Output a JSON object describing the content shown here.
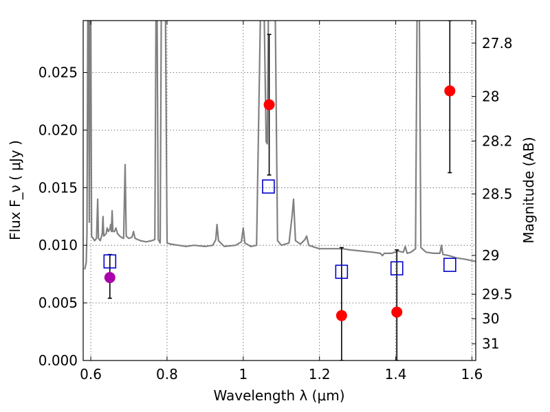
{
  "chart_data": {
    "type": "scatter",
    "xlabel": "Wavelength  λ (μm)",
    "ylabel": "Flux  F_ν  ( μJy )",
    "y2label": "Magnitude (AB)",
    "xlim": [
      0.58,
      1.61
    ],
    "ylim": [
      0.0,
      0.0295
    ],
    "xticks": [
      0.6,
      0.8,
      1.0,
      1.2,
      1.4,
      1.6
    ],
    "xtick_labels": [
      "0.6",
      "0.8",
      "1",
      "1.2",
      "1.4",
      "1.6"
    ],
    "yticks": [
      0.0,
      0.005,
      0.01,
      0.015,
      0.02,
      0.025
    ],
    "ytick_labels": [
      "0.000",
      "0.005",
      "0.010",
      "0.015",
      "0.020",
      "0.025"
    ],
    "y2ticks": [
      27.8,
      28.0,
      28.2,
      28.5,
      29.0,
      29.5,
      30.0,
      31.0
    ],
    "y2tick_labels": [
      "27.8",
      "28",
      "28.2",
      "28.5",
      "29",
      "29.5",
      "30",
      "31"
    ],
    "grid": true,
    "colors": {
      "template": "#808080",
      "observed": "#ff0000",
      "model": "#0000cc",
      "special": "#aa00aa",
      "errorbar": "#000000"
    },
    "series": [
      {
        "style": "line",
        "points": [
          [
            0.584,
            0.0079
          ],
          [
            0.588,
            0.0085
          ],
          [
            0.59,
            0.011
          ],
          [
            0.592,
            0.03
          ],
          [
            0.594,
            0.03
          ],
          [
            0.596,
            0.012
          ],
          [
            0.598,
            0.03
          ],
          [
            0.6,
            0.03
          ],
          [
            0.602,
            0.0108
          ],
          [
            0.61,
            0.0104
          ],
          [
            0.615,
            0.0106
          ],
          [
            0.618,
            0.014
          ],
          [
            0.62,
            0.0106
          ],
          [
            0.625,
            0.0104
          ],
          [
            0.63,
            0.011
          ],
          [
            0.632,
            0.0125
          ],
          [
            0.634,
            0.0108
          ],
          [
            0.64,
            0.011
          ],
          [
            0.643,
            0.0115
          ],
          [
            0.646,
            0.0112
          ],
          [
            0.65,
            0.0114
          ],
          [
            0.652,
            0.0118
          ],
          [
            0.654,
            0.0112
          ],
          [
            0.656,
            0.013
          ],
          [
            0.658,
            0.0112
          ],
          [
            0.662,
            0.0112
          ],
          [
            0.666,
            0.0115
          ],
          [
            0.67,
            0.011
          ],
          [
            0.676,
            0.0108
          ],
          [
            0.68,
            0.0107
          ],
          [
            0.686,
            0.0106
          ],
          [
            0.69,
            0.017
          ],
          [
            0.693,
            0.0108
          ],
          [
            0.7,
            0.0106
          ],
          [
            0.708,
            0.0107
          ],
          [
            0.712,
            0.0112
          ],
          [
            0.716,
            0.0106
          ],
          [
            0.73,
            0.0104
          ],
          [
            0.745,
            0.0103
          ],
          [
            0.76,
            0.0104
          ],
          [
            0.768,
            0.0105
          ],
          [
            0.771,
            0.03
          ],
          [
            0.774,
            0.03
          ],
          [
            0.777,
            0.0105
          ],
          [
            0.782,
            0.0102
          ],
          [
            0.785,
            0.03
          ],
          [
            0.79,
            0.03
          ],
          [
            0.793,
            0.03
          ],
          [
            0.796,
            0.03
          ],
          [
            0.8,
            0.0102
          ],
          [
            0.81,
            0.0101
          ],
          [
            0.83,
            0.01
          ],
          [
            0.85,
            0.0099
          ],
          [
            0.87,
            0.01
          ],
          [
            0.9,
            0.0099
          ],
          [
            0.92,
            0.01
          ],
          [
            0.928,
            0.0105
          ],
          [
            0.931,
            0.0118
          ],
          [
            0.935,
            0.0104
          ],
          [
            0.95,
            0.0099
          ],
          [
            0.98,
            0.01
          ],
          [
            0.995,
            0.0103
          ],
          [
            1.0,
            0.0115
          ],
          [
            1.004,
            0.0102
          ],
          [
            1.02,
            0.0099
          ],
          [
            1.035,
            0.01
          ],
          [
            1.045,
            0.03
          ],
          [
            1.055,
            0.03
          ],
          [
            1.06,
            0.019
          ],
          [
            1.063,
            0.0188
          ],
          [
            1.066,
            0.03
          ],
          [
            1.072,
            0.03
          ],
          [
            1.078,
            0.03
          ],
          [
            1.084,
            0.03
          ],
          [
            1.09,
            0.0104
          ],
          [
            1.1,
            0.01
          ],
          [
            1.12,
            0.0102
          ],
          [
            1.128,
            0.0125
          ],
          [
            1.132,
            0.014
          ],
          [
            1.137,
            0.0104
          ],
          [
            1.15,
            0.0101
          ],
          [
            1.162,
            0.0105
          ],
          [
            1.166,
            0.0108
          ],
          [
            1.172,
            0.01
          ],
          [
            1.19,
            0.0098
          ],
          [
            1.2,
            0.0097
          ],
          [
            1.23,
            0.0097
          ],
          [
            1.26,
            0.0097
          ],
          [
            1.28,
            0.0096
          ],
          [
            1.31,
            0.0095
          ],
          [
            1.34,
            0.0094
          ],
          [
            1.36,
            0.0093
          ],
          [
            1.365,
            0.0091
          ],
          [
            1.37,
            0.0093
          ],
          [
            1.38,
            0.0093
          ],
          [
            1.39,
            0.0093
          ],
          [
            1.405,
            0.0095
          ],
          [
            1.42,
            0.0094
          ],
          [
            1.425,
            0.0099
          ],
          [
            1.43,
            0.0093
          ],
          [
            1.44,
            0.0094
          ],
          [
            1.452,
            0.0097
          ],
          [
            1.456,
            0.03
          ],
          [
            1.462,
            0.03
          ],
          [
            1.466,
            0.0098
          ],
          [
            1.48,
            0.0094
          ],
          [
            1.5,
            0.0093
          ],
          [
            1.516,
            0.0093
          ],
          [
            1.52,
            0.01
          ],
          [
            1.524,
            0.0092
          ],
          [
            1.54,
            0.0091
          ],
          [
            1.56,
            0.0089
          ],
          [
            1.58,
            0.0088
          ],
          [
            1.61,
            0.0086
          ]
        ]
      },
      {
        "style": "points-filled",
        "color": "#ff0000",
        "x": [
          1.068,
          1.258,
          1.403,
          1.542
        ],
        "y": [
          0.0222,
          0.0039,
          0.0042,
          0.0234
        ],
        "err_low": [
          0.0061,
          0.0039,
          0.0042,
          0.0071
        ],
        "err_high": [
          0.0061,
          0.0059,
          0.0054,
          0.0061
        ]
      },
      {
        "style": "points-filled",
        "color": "#aa00aa",
        "x": [
          0.65
        ],
        "y": [
          0.0072
        ],
        "err_low": [
          0.0018
        ],
        "err_high": [
          0.002
        ]
      },
      {
        "style": "points-open-square",
        "color": "#0000cc",
        "x": [
          0.65,
          1.066,
          1.258,
          1.403,
          1.542
        ],
        "y": [
          0.0086,
          0.0151,
          0.0077,
          0.008,
          0.0083
        ]
      }
    ]
  }
}
